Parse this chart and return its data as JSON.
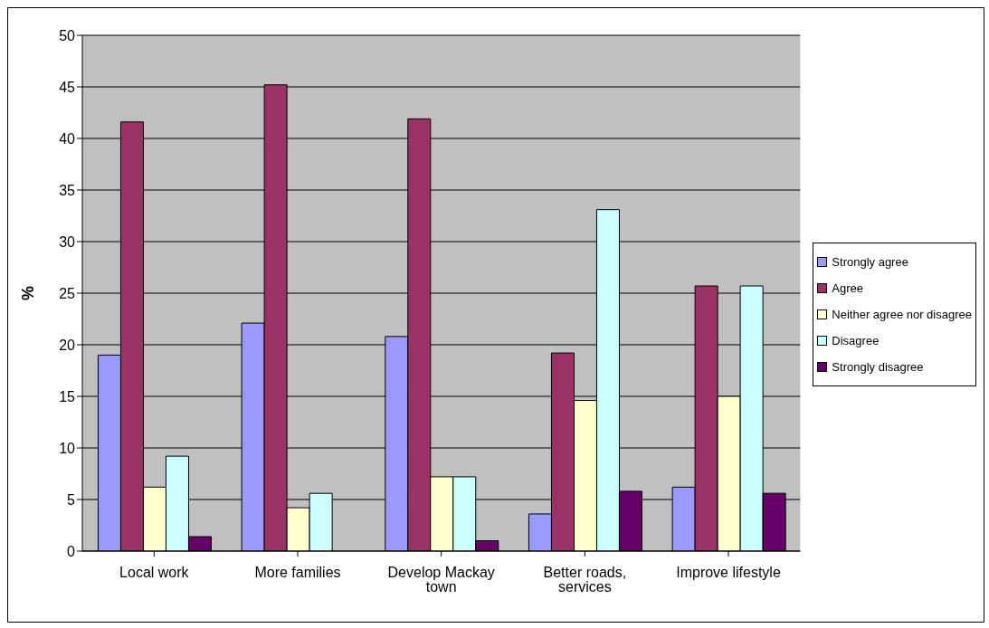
{
  "chart_data": {
    "type": "bar",
    "ylabel": "%",
    "categories": [
      "Local work",
      "More families",
      "Develop Mackay town",
      "Better roads, services",
      "Improve lifestyle"
    ],
    "series": [
      {
        "name": "Strongly agree",
        "color": "#9999ff",
        "values": [
          19.0,
          22.1,
          20.8,
          3.6,
          6.2
        ]
      },
      {
        "name": "Agree",
        "color": "#993366",
        "values": [
          41.6,
          45.2,
          41.9,
          19.2,
          25.7
        ]
      },
      {
        "name": "Neither agree nor disagree",
        "color": "#ffffcc",
        "values": [
          6.2,
          4.2,
          7.2,
          14.6,
          15.0
        ]
      },
      {
        "name": "Disagree",
        "color": "#ccffff",
        "values": [
          9.2,
          5.6,
          7.2,
          33.1,
          25.7
        ]
      },
      {
        "name": "Strongly disagree",
        "color": "#660066",
        "values": [
          1.4,
          null,
          1.0,
          5.8,
          5.6
        ]
      }
    ],
    "ylim": [
      0,
      50
    ],
    "yticks": [
      0,
      5,
      10,
      15,
      20,
      25,
      30,
      35,
      40,
      45,
      50
    ],
    "grid": "y",
    "legend": "right"
  }
}
